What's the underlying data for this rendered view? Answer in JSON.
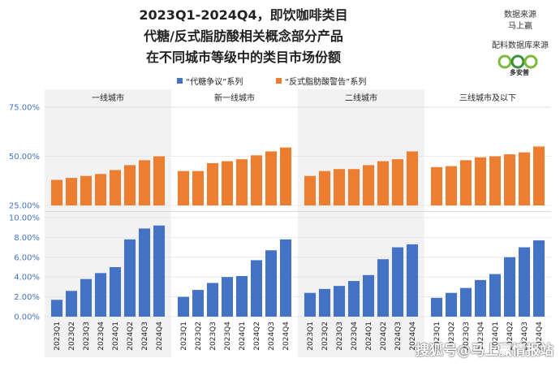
{
  "title_lines": [
    "2023Q1-2024Q4，即饮咖啡类目",
    "代糖/反式脂肪酸相关概念部分产品",
    "在不同城市等级中的类目市场份额"
  ],
  "source": {
    "label1": "数据来源",
    "name1": "马上赢",
    "label2": "配料数据库来源",
    "brand": "多安普"
  },
  "watermark": "搜狐号@马上赢情报站",
  "colors": {
    "blue": "#4472C4",
    "orange": "#ED7D31",
    "panel_shade": "#f2f2f2"
  },
  "chart_data": {
    "type": "bar",
    "legend": [
      "“代糖争议”系列",
      "“反式脂肪酸警告”系列"
    ],
    "legend_position": "top",
    "panels": [
      "一线城市",
      "新一线城市",
      "二线城市",
      "三线城市及以下"
    ],
    "categories": [
      "2023Q1",
      "2023Q2",
      "2023Q3",
      "2023Q4",
      "2024Q1",
      "2024Q2",
      "2024Q3",
      "2024Q4"
    ],
    "top": {
      "series_name": "“反式脂肪酸警告”系列",
      "ylim": [
        25,
        75
      ],
      "ticks": [
        "75.00%",
        "50.00%",
        "25.00%"
      ],
      "tick_values": [
        75,
        50,
        25
      ],
      "values": [
        [
          38,
          39,
          40,
          41,
          43,
          45.5,
          48,
          50
        ],
        [
          42.5,
          42.5,
          46.5,
          47.5,
          48.5,
          50.5,
          52.5,
          54.5
        ],
        [
          40,
          42.5,
          43.5,
          43.5,
          45.5,
          47.5,
          48.5,
          52.5
        ],
        [
          44.5,
          45,
          48,
          49.5,
          50,
          51,
          52,
          55
        ]
      ]
    },
    "bottom": {
      "series_name": "“代糖争议”系列",
      "ylim": [
        0,
        10
      ],
      "ticks": [
        "10.00%",
        "8.00%",
        "6.00%",
        "4.00%",
        "2.00%",
        "0.00%"
      ],
      "tick_values": [
        10,
        8,
        6,
        4,
        2,
        0
      ],
      "values": [
        [
          1.7,
          2.6,
          3.8,
          4.4,
          5.0,
          7.8,
          8.9,
          9.2
        ],
        [
          2.0,
          2.7,
          3.4,
          4.0,
          4.1,
          5.7,
          6.7,
          7.8
        ],
        [
          2.4,
          2.8,
          3.1,
          3.6,
          4.2,
          5.8,
          7.0,
          7.3
        ],
        [
          1.9,
          2.4,
          2.9,
          3.7,
          4.3,
          6.0,
          7.0,
          7.7
        ]
      ]
    }
  }
}
